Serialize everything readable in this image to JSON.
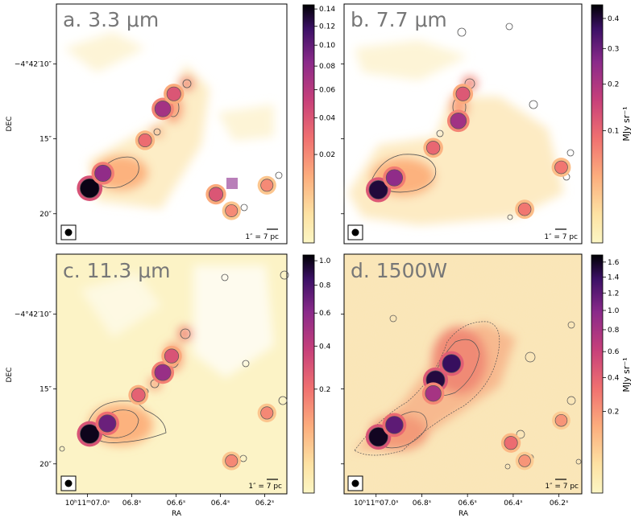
{
  "chart_data": [
    {
      "type": "heatmap",
      "panel_label": "a. 3.3 μm",
      "wavelength": "3.3 μm",
      "colormap": "magma_r",
      "colorbar_ticks": [
        "0.14",
        "0.12",
        "0.10",
        "0.08",
        "0.06",
        "0.04",
        "0.02"
      ],
      "colorbar_values": [
        0.14,
        0.12,
        0.1,
        0.08,
        0.06,
        0.04,
        0.02
      ],
      "colorbar_range": [
        0.0,
        0.145
      ],
      "ylabel": "DEC",
      "y_ticks": [
        "−4°42′10″",
        "15″",
        "20″"
      ],
      "scale_bar": "1″ = 7 pc",
      "sources": [
        {
          "ra": 6.99,
          "dec": 18.3,
          "value": 0.14
        },
        {
          "ra": 6.93,
          "dec": 17.3,
          "value": 0.08
        },
        {
          "ra": 6.66,
          "dec": 13.0,
          "value": 0.07
        },
        {
          "ra": 6.61,
          "dec": 12.0,
          "value": 0.04
        },
        {
          "ra": 6.74,
          "dec": 15.1,
          "value": 0.03
        },
        {
          "ra": 6.42,
          "dec": 18.7,
          "value": 0.04
        },
        {
          "ra": 6.35,
          "dec": 19.8,
          "value": 0.02
        },
        {
          "ra": 6.19,
          "dec": 18.1,
          "value": 0.02
        }
      ]
    },
    {
      "type": "heatmap",
      "panel_label": "b. 7.7 μm",
      "wavelength": "7.7 μm",
      "colormap": "magma_r",
      "colorbar_ticks": [
        "0.4",
        "0.3",
        "0.2",
        "0.1"
      ],
      "colorbar_values": [
        0.4,
        0.3,
        0.2,
        0.1
      ],
      "colorbar_range": [
        0.0,
        0.45
      ],
      "colorbar_label": "MJy sr⁻¹",
      "scale_bar": "1″ = 7 pc",
      "sources": [
        {
          "ra": 6.99,
          "dec": 18.4,
          "value": 0.4
        },
        {
          "ra": 6.92,
          "dec": 17.6,
          "value": 0.25
        },
        {
          "ra": 6.64,
          "dec": 13.8,
          "value": 0.22
        },
        {
          "ra": 6.62,
          "dec": 12.0,
          "value": 0.12
        },
        {
          "ra": 6.75,
          "dec": 15.6,
          "value": 0.1
        },
        {
          "ra": 6.35,
          "dec": 19.7,
          "value": 0.08
        },
        {
          "ra": 6.19,
          "dec": 16.9,
          "value": 0.08
        }
      ]
    },
    {
      "type": "heatmap",
      "panel_label": "c. 11.3 μm",
      "wavelength": "11.3 μm",
      "colormap": "magma_r",
      "colorbar_ticks": [
        "1.0",
        "0.8",
        "0.6",
        "0.4",
        "0.2"
      ],
      "colorbar_values": [
        1.0,
        0.8,
        0.6,
        0.4,
        0.2
      ],
      "colorbar_range": [
        0.0,
        1.05
      ],
      "xlabel": "RA",
      "ylabel": "DEC",
      "x_ticks": [
        "10ʰ11ᵐ07.0ˢ",
        "06.8ˢ",
        "06.6ˢ",
        "06.4ˢ",
        "06.2ˢ"
      ],
      "y_ticks": [
        "−4°42′10″",
        "15″",
        "20″"
      ],
      "scale_bar": "1″ = 7 pc",
      "sources": [
        {
          "ra": 6.99,
          "dec": 18.0,
          "value": 1.0
        },
        {
          "ra": 6.91,
          "dec": 17.3,
          "value": 0.7
        },
        {
          "ra": 6.66,
          "dec": 13.9,
          "value": 0.55
        },
        {
          "ra": 6.62,
          "dec": 12.8,
          "value": 0.3
        },
        {
          "ra": 6.77,
          "dec": 15.4,
          "value": 0.25
        },
        {
          "ra": 6.35,
          "dec": 19.8,
          "value": 0.15
        },
        {
          "ra": 6.19,
          "dec": 16.6,
          "value": 0.15
        }
      ]
    },
    {
      "type": "heatmap",
      "panel_label": "d. 1500W",
      "wavelength": "1500W",
      "colormap": "magma_r",
      "colorbar_ticks": [
        "1.6",
        "1.4",
        "1.2",
        "1.0",
        "0.8",
        "0.6",
        "0.4",
        "0.2"
      ],
      "colorbar_values": [
        1.6,
        1.4,
        1.2,
        1.0,
        0.8,
        0.6,
        0.4,
        0.2
      ],
      "colorbar_range": [
        0.0,
        1.7
      ],
      "colorbar_label": "MJy sr⁻¹",
      "xlabel": "RA",
      "x_ticks": [
        "10ʰ11ᵐ07.0ˢ",
        "06.8ˢ",
        "06.6ˢ",
        "06.4ˢ",
        "06.2ˢ"
      ],
      "scale_bar": "1″ = 7 pc",
      "sources": [
        {
          "ra": 6.99,
          "dec": 18.2,
          "value": 1.6
        },
        {
          "ra": 6.92,
          "dec": 17.4,
          "value": 1.2
        },
        {
          "ra": 6.74,
          "dec": 14.4,
          "value": 1.5
        },
        {
          "ra": 6.67,
          "dec": 13.3,
          "value": 1.4
        },
        {
          "ra": 6.75,
          "dec": 15.3,
          "value": 0.8
        },
        {
          "ra": 6.41,
          "dec": 18.6,
          "value": 0.35
        },
        {
          "ra": 6.35,
          "dec": 19.8,
          "value": 0.2
        },
        {
          "ra": 6.19,
          "dec": 17.1,
          "value": 0.2
        }
      ]
    }
  ]
}
